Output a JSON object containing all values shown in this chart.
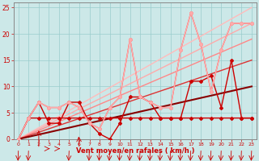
{
  "x": [
    0,
    1,
    2,
    3,
    4,
    5,
    6,
    7,
    8,
    9,
    10,
    11,
    12,
    13,
    14,
    15,
    16,
    17,
    18,
    19,
    20,
    21,
    22,
    23
  ],
  "series": [
    {
      "name": "flat_dark_red",
      "y": [
        0,
        4,
        4,
        4,
        4,
        4,
        4,
        4,
        4,
        4,
        4,
        4,
        4,
        4,
        4,
        4,
        4,
        4,
        4,
        4,
        4,
        4,
        4,
        4
      ],
      "color": "#cc0000",
      "lw": 1.0,
      "marker": "D",
      "ms": 2.0
    },
    {
      "name": "zigzag_darkred",
      "y": [
        0,
        4,
        7,
        3,
        3,
        7,
        7,
        3,
        1,
        0,
        3,
        8,
        8,
        7,
        4,
        4,
        4,
        11,
        11,
        12,
        6,
        15,
        4,
        4
      ],
      "color": "#cc0000",
      "lw": 1.0,
      "marker": "D",
      "ms": 2.0
    },
    {
      "name": "zigzag_medred",
      "y": [
        0,
        4,
        7,
        6,
        6,
        7,
        6,
        3,
        2,
        6,
        8,
        19,
        8,
        7,
        6,
        6,
        17,
        24,
        18,
        9,
        17,
        22,
        22,
        22
      ],
      "color": "#ff4444",
      "lw": 1.0,
      "marker": "D",
      "ms": 2.0
    },
    {
      "name": "zigzag_pink",
      "y": [
        0,
        4,
        7,
        6,
        6,
        7,
        6,
        3,
        2,
        6,
        8,
        19,
        8,
        7,
        6,
        6,
        17,
        24,
        18,
        9,
        17,
        22,
        22,
        22
      ],
      "color": "#ffaaaa",
      "lw": 1.0,
      "marker": "D",
      "ms": 2.0
    },
    {
      "name": "linear_very_light",
      "y": [
        0,
        1.08,
        2.17,
        3.26,
        4.35,
        5.43,
        6.52,
        7.61,
        8.7,
        9.78,
        10.87,
        11.96,
        13.04,
        14.13,
        15.22,
        16.3,
        17.39,
        18.48,
        19.57,
        20.65,
        21.74,
        22.83,
        23.91,
        25.0
      ],
      "color": "#ffbbbb",
      "lw": 1.0,
      "marker": null,
      "ms": 0
    },
    {
      "name": "linear_light1",
      "y": [
        0,
        0.96,
        1.91,
        2.87,
        3.83,
        4.78,
        5.74,
        6.7,
        7.65,
        8.61,
        9.57,
        10.52,
        11.48,
        12.43,
        13.39,
        14.35,
        15.3,
        16.26,
        17.22,
        18.17,
        19.13,
        20.09,
        21.04,
        22.0
      ],
      "color": "#ffaaaa",
      "lw": 1.0,
      "marker": null,
      "ms": 0
    },
    {
      "name": "linear_light2",
      "y": [
        0,
        0.83,
        1.65,
        2.48,
        3.3,
        4.13,
        4.96,
        5.78,
        6.61,
        7.43,
        8.26,
        9.09,
        9.91,
        10.74,
        11.57,
        12.39,
        13.22,
        14.04,
        14.87,
        15.7,
        16.52,
        17.35,
        18.17,
        19.0
      ],
      "color": "#ff8888",
      "lw": 1.0,
      "marker": null,
      "ms": 0
    },
    {
      "name": "linear_med",
      "y": [
        0,
        0.65,
        1.3,
        1.96,
        2.61,
        3.26,
        3.91,
        4.57,
        5.22,
        5.87,
        6.52,
        7.17,
        7.83,
        8.48,
        9.13,
        9.78,
        10.43,
        11.09,
        11.74,
        12.39,
        13.04,
        13.7,
        14.35,
        15.0
      ],
      "color": "#dd3333",
      "lw": 1.0,
      "marker": null,
      "ms": 0
    },
    {
      "name": "linear_dark",
      "y": [
        0,
        0.43,
        0.87,
        1.3,
        1.74,
        2.17,
        2.61,
        3.04,
        3.48,
        3.91,
        4.35,
        4.78,
        5.22,
        5.65,
        6.09,
        6.52,
        6.96,
        7.39,
        7.83,
        8.26,
        8.7,
        9.13,
        9.57,
        10.0
      ],
      "color": "#880000",
      "lw": 1.5,
      "marker": null,
      "ms": 0
    }
  ],
  "wind_arrows_x": [
    0,
    1,
    2,
    3,
    4,
    5,
    6,
    7,
    8,
    9,
    10,
    11,
    12,
    13,
    14,
    15,
    16,
    17,
    18,
    19,
    20,
    21,
    22,
    23
  ],
  "xlabel": "Vent moyen/en rafales ( km/h )",
  "ylim": [
    0,
    26
  ],
  "xlim": [
    -0.5,
    23.5
  ],
  "yticks": [
    0,
    5,
    10,
    15,
    20,
    25
  ],
  "xticks": [
    0,
    1,
    2,
    3,
    4,
    5,
    6,
    7,
    8,
    9,
    10,
    11,
    12,
    13,
    14,
    15,
    16,
    17,
    18,
    19,
    20,
    21,
    22,
    23
  ],
  "bg_color": "#cce8e8",
  "grid_color": "#99cccc",
  "xlabel_color": "#cc0000",
  "tick_color": "#cc0000",
  "spine_color": "#888888"
}
